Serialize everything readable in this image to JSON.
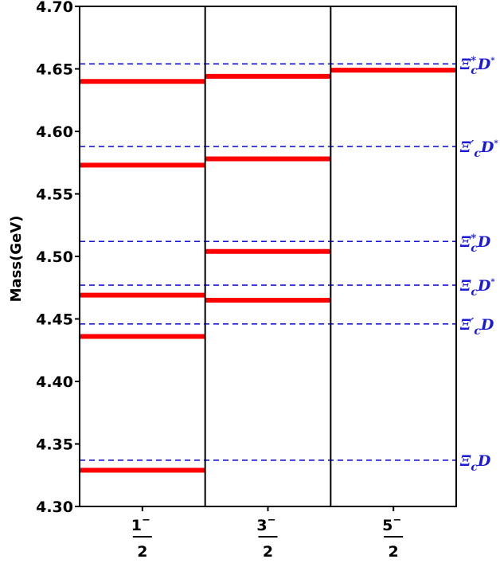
{
  "chart_data": {
    "type": "level-diagram",
    "title": "",
    "ylabel": "Mass(GeV)",
    "ylim": [
      4.3,
      4.7
    ],
    "yticks": [
      "4.30",
      "4.35",
      "4.40",
      "4.45",
      "4.50",
      "4.55",
      "4.60",
      "4.65",
      "4.70"
    ],
    "columns": [
      {
        "num": "1",
        "sup": "−",
        "den": "2"
      },
      {
        "num": "3",
        "sup": "−",
        "den": "2"
      },
      {
        "num": "5",
        "sup": "−",
        "den": "2"
      }
    ],
    "levels": [
      {
        "column": 0,
        "value": 4.329
      },
      {
        "column": 0,
        "value": 4.436
      },
      {
        "column": 0,
        "value": 4.469
      },
      {
        "column": 0,
        "value": 4.573
      },
      {
        "column": 0,
        "value": 4.64
      },
      {
        "column": 1,
        "value": 4.465
      },
      {
        "column": 1,
        "value": 4.504
      },
      {
        "column": 1,
        "value": 4.578
      },
      {
        "column": 1,
        "value": 4.644
      },
      {
        "column": 2,
        "value": 4.649
      }
    ],
    "thresholds": [
      {
        "value": 4.337,
        "base": "Ξ",
        "prime": "",
        "star": "",
        "sub": "c",
        "meson": "D",
        "mstar": ""
      },
      {
        "value": 4.446,
        "base": "Ξ",
        "prime": "′",
        "star": "",
        "sub": "c",
        "meson": "D",
        "mstar": ""
      },
      {
        "value": 4.477,
        "base": "Ξ",
        "prime": "",
        "star": "",
        "sub": "c",
        "meson": "D",
        "mstar": "*"
      },
      {
        "value": 4.512,
        "base": "Ξ",
        "prime": "",
        "star": "*",
        "sub": "c",
        "meson": "D",
        "mstar": ""
      },
      {
        "value": 4.588,
        "base": "Ξ",
        "prime": "′",
        "star": "",
        "sub": "c",
        "meson": "D",
        "mstar": "*"
      },
      {
        "value": 4.654,
        "base": "Ξ",
        "prime": "",
        "star": "*",
        "sub": "c",
        "meson": "D",
        "mstar": "*"
      }
    ],
    "colors": {
      "level": "#ff0000",
      "threshold": "#1a1ad6",
      "frame": "#000000"
    },
    "grid": false,
    "legend": "none"
  }
}
